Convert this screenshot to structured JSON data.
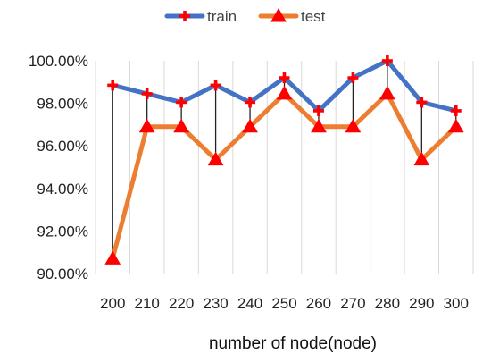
{
  "chart_data": {
    "type": "line",
    "xlabel": "number of node(node)",
    "ylabel": "",
    "ylim": [
      90,
      100
    ],
    "y_ticks": [
      "90.00%",
      "92.00%",
      "94.00%",
      "96.00%",
      "98.00%",
      "100.00%"
    ],
    "y_tick_values": [
      90,
      92,
      94,
      96,
      98,
      100
    ],
    "categories": [
      "200",
      "210",
      "220",
      "230",
      "240",
      "250",
      "260",
      "270",
      "280",
      "290",
      "300"
    ],
    "series": [
      {
        "name": "train",
        "color": "#4472C4",
        "marker": "plus",
        "marker_color": "#FF0000",
        "values": [
          98.85,
          98.45,
          98.05,
          98.85,
          98.05,
          99.2,
          97.65,
          99.2,
          100.0,
          98.05,
          97.65
        ]
      },
      {
        "name": "test",
        "color": "#ED7D31",
        "marker": "triangle",
        "marker_color": "#FF0000",
        "values": [
          90.7,
          96.9,
          96.9,
          95.35,
          96.9,
          98.45,
          96.9,
          96.9,
          98.45,
          95.35,
          96.9
        ]
      }
    ],
    "high_low_lines": true,
    "grid": {
      "horizontal": false,
      "vertical": true,
      "color": "#d9d9d9"
    },
    "legend": "top-center"
  }
}
